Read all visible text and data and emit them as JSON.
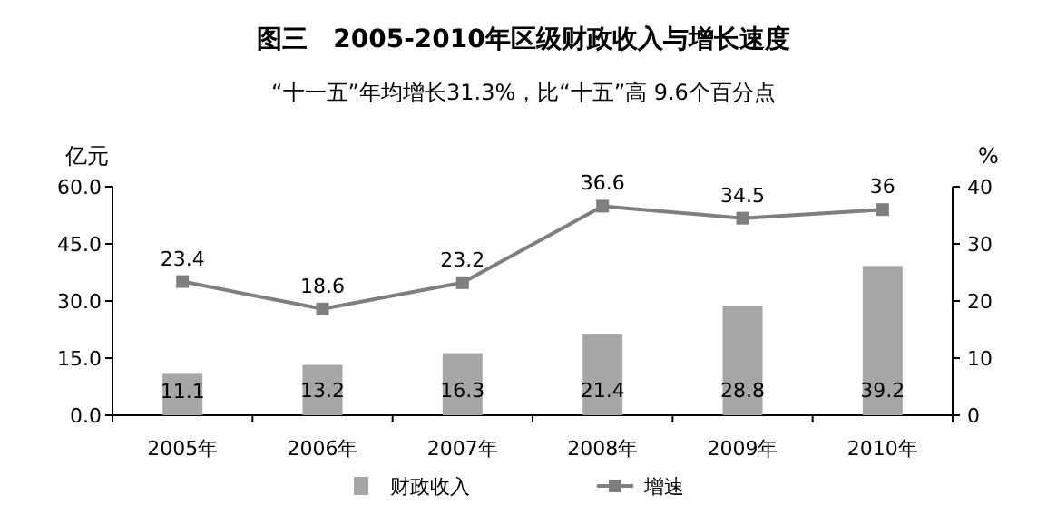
{
  "chart_data": {
    "type": "bar",
    "title": "图三　2005-2010年区级财政收入与增长速度",
    "subtitle": "“十一五”年均增长31.3%，比“十五”高 9.6个百分点",
    "ylabel": "亿元",
    "y2label": "%",
    "categories": [
      "2005年",
      "2006年",
      "2007年",
      "2008年",
      "2009年",
      "2010年"
    ],
    "series": [
      {
        "name": "财政收入",
        "color": "#a6a6a6",
        "values": [
          11.1,
          13.2,
          16.3,
          21.4,
          28.8,
          39.2
        ]
      },
      {
        "name": "增速",
        "type": "line",
        "axis": "y2",
        "color": "#7f7f7f",
        "values": [
          23.4,
          18.6,
          23.2,
          36.6,
          34.5,
          36
        ]
      }
    ],
    "ylim": [
      0,
      60
    ],
    "yticks": [
      {
        "value": 0,
        "label": "0.0"
      },
      {
        "value": 15,
        "label": "15.0"
      },
      {
        "value": 30,
        "label": "30.0"
      },
      {
        "value": 45,
        "label": "45.0"
      },
      {
        "value": 60,
        "label": "60.0"
      }
    ],
    "y2lim": [
      0,
      40
    ],
    "y2ticks": [
      0,
      10,
      20,
      30,
      40
    ],
    "data_labels": true,
    "legend": "bottom",
    "marker": "square",
    "grid": false
  }
}
